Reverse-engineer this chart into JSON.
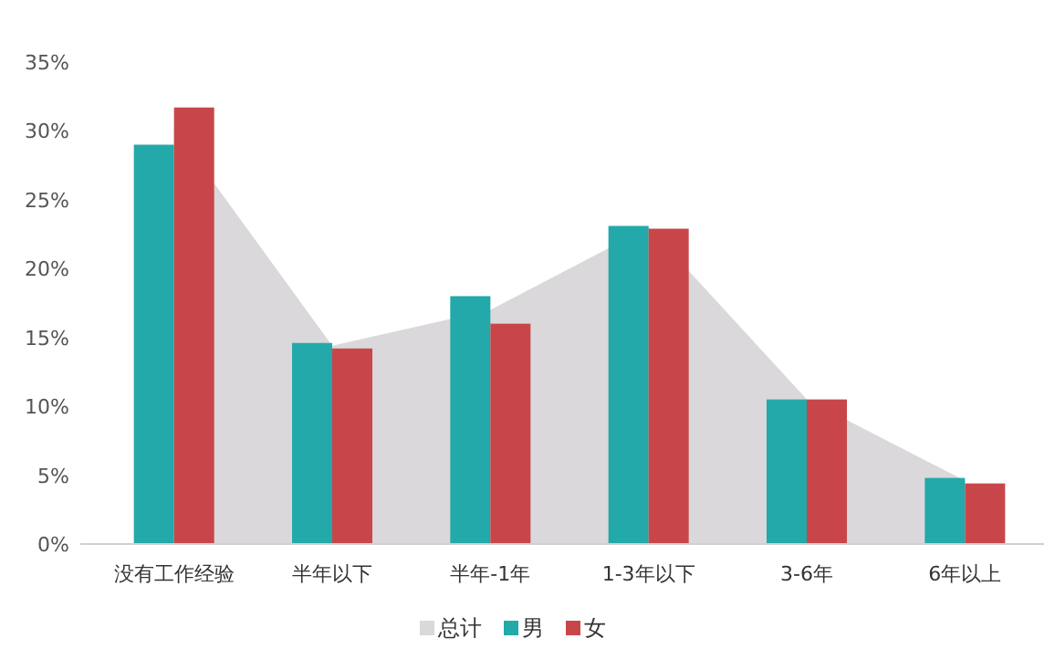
{
  "chart_data": {
    "type": "bar",
    "categories": [
      "没有工作经验",
      "半年以下",
      "半年-1年",
      "1-3年以下",
      "3-6年",
      "6年以上"
    ],
    "series": [
      {
        "name": "总计",
        "type": "area",
        "color": "#dad8da",
        "values": [
          30.2,
          14.4,
          17.0,
          23.0,
          10.5,
          4.6
        ]
      },
      {
        "name": "男",
        "color": "#23a9a9",
        "values": [
          29.0,
          14.6,
          18.0,
          23.1,
          10.5,
          4.8
        ]
      },
      {
        "name": "女",
        "color": "#c8464a",
        "values": [
          31.7,
          14.2,
          16.0,
          22.9,
          10.5,
          4.4
        ]
      }
    ],
    "ylim": [
      0,
      35
    ],
    "yticks": [
      {
        "value": 0,
        "label": "0%"
      },
      {
        "value": 5,
        "label": "5%"
      },
      {
        "value": 10,
        "label": "10%"
      },
      {
        "value": 15,
        "label": "15%"
      },
      {
        "value": 20,
        "label": "20%"
      },
      {
        "value": 25,
        "label": "25%"
      },
      {
        "value": 30,
        "label": "30%"
      },
      {
        "value": 35,
        "label": "35%"
      }
    ],
    "legend": "bottom"
  }
}
